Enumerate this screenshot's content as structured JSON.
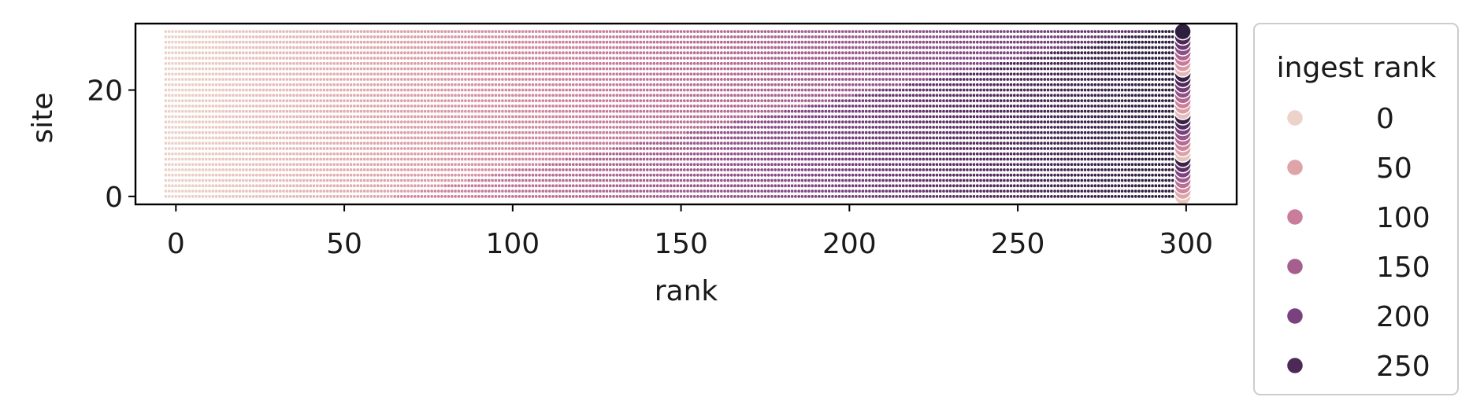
{
  "chart_data": {
    "type": "scatter",
    "title": "",
    "xlabel": "rank",
    "ylabel": "site",
    "xlim": [
      -12,
      315
    ],
    "ylim": [
      -1.5,
      32.5
    ],
    "x_ticks": [
      0,
      50,
      100,
      150,
      200,
      250,
      300
    ],
    "y_ticks": [
      0,
      20
    ],
    "x_tick_labels": [
      "0",
      "50",
      "100",
      "150",
      "200",
      "250",
      "300"
    ],
    "y_tick_labels": [
      "0",
      "20"
    ],
    "grid": false,
    "points_description": {
      "x_range": [
        -3,
        299
      ],
      "sites": [
        0,
        31
      ],
      "dense_column_x": 299
    },
    "hue": {
      "name": "ingest rank",
      "range": [
        0,
        290
      ],
      "colors": [
        "#ecd2c9",
        "#dfa6aa",
        "#cb7f9b",
        "#a9628f",
        "#7f4582",
        "#532b5c",
        "#2d1e3e"
      ]
    },
    "legend": {
      "title": "ingest rank",
      "placement": "outside-right",
      "entries": [
        {
          "label": "0",
          "value": 0
        },
        {
          "label": "50",
          "value": 50
        },
        {
          "label": "100",
          "value": 100
        },
        {
          "label": "150",
          "value": 150
        },
        {
          "label": "200",
          "value": 200
        },
        {
          "label": "250",
          "value": 250
        }
      ]
    }
  }
}
